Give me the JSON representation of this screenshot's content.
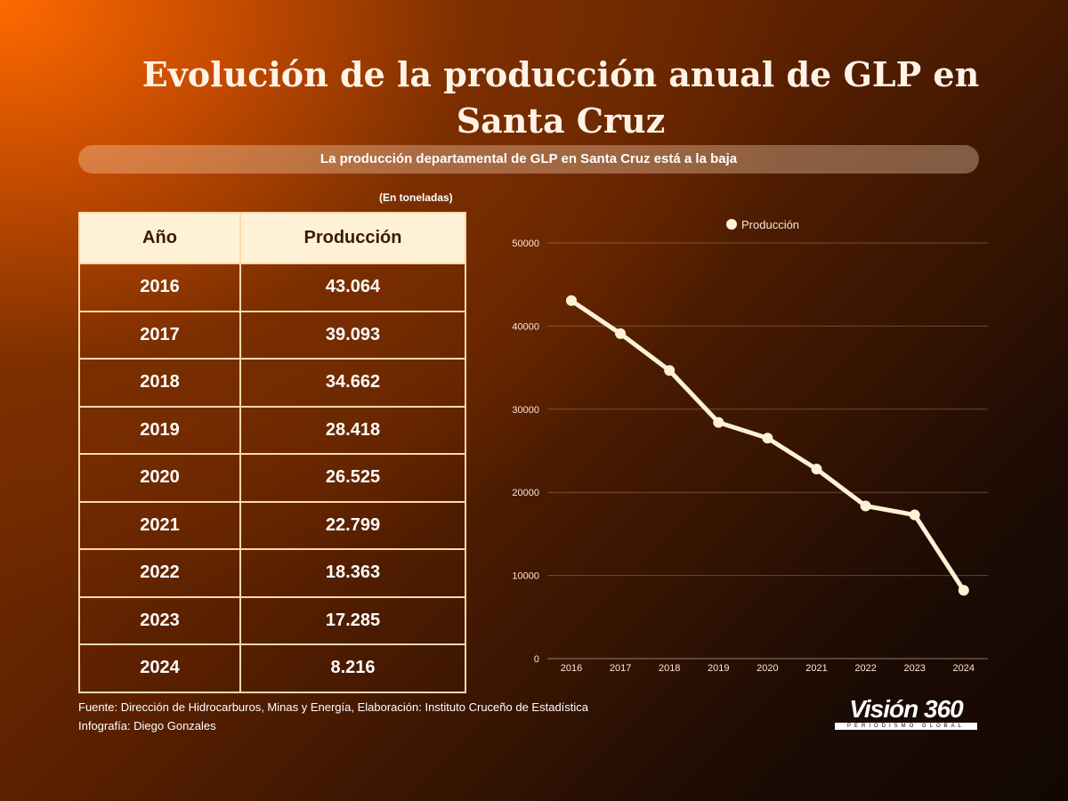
{
  "title": "Evolución de la producción anual de GLP en Santa Cruz",
  "subtitle": "La producción departamental de GLP en Santa Cruz está a la baja",
  "units_note": "(En toneladas)",
  "table": {
    "headers": [
      "Año",
      "Producción"
    ],
    "rows": [
      [
        "2016",
        "43.064"
      ],
      [
        "2017",
        "39.093"
      ],
      [
        "2018",
        "34.662"
      ],
      [
        "2019",
        "28.418"
      ],
      [
        "2020",
        "26.525"
      ],
      [
        "2021",
        "22.799"
      ],
      [
        "2022",
        "18.363"
      ],
      [
        "2023",
        "17.285"
      ],
      [
        "2024",
        "8.216"
      ]
    ]
  },
  "chart_data": {
    "type": "line",
    "categories": [
      "2016",
      "2017",
      "2018",
      "2019",
      "2020",
      "2021",
      "2022",
      "2023",
      "2024"
    ],
    "series": [
      {
        "name": "Producción",
        "values": [
          43064,
          39093,
          34662,
          28418,
          26525,
          22799,
          18363,
          17285,
          8216
        ]
      }
    ],
    "yticks": [
      "0",
      "10000",
      "20000",
      "30000",
      "40000",
      "50000"
    ],
    "ylim": [
      0,
      50000
    ],
    "grid": true,
    "legend": "top",
    "color": "#fff1d6"
  },
  "footer": {
    "source": "Fuente: Dirección de Hidrocarburos, Minas y Energía, Elaboración: Instituto Cruceño de Estadística",
    "credit": "Infografía: Diego Gonzales"
  },
  "logo": {
    "name": "Visión 360",
    "tagline": "PERIODISMO GLOBAL"
  }
}
